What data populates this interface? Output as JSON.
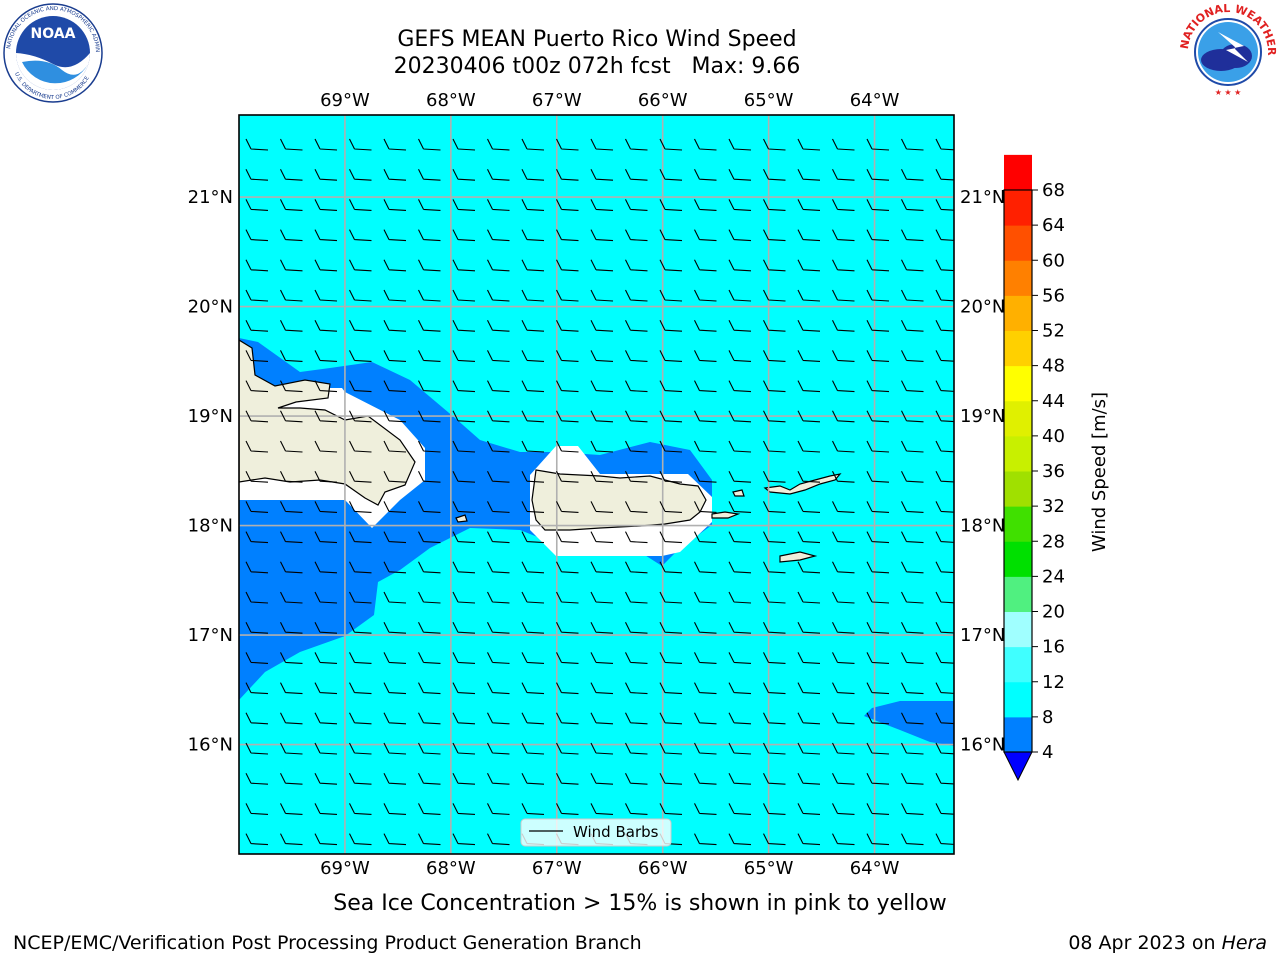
{
  "title": {
    "line1": "GEFS MEAN Puerto Rico Wind Speed",
    "line2": "20230406 t00z 072h fcst   Max: 9.66"
  },
  "logos": {
    "left": "NOAA",
    "right": "NATIONAL WEATHER SERVICE"
  },
  "map": {
    "lon_labels": [
      "69°W",
      "68°W",
      "67°W",
      "66°W",
      "65°W",
      "64°W"
    ],
    "lat_labels": [
      "21°N",
      "20°N",
      "19°N",
      "18°N",
      "17°N",
      "16°N"
    ],
    "lon_values": [
      -69,
      -68,
      -67,
      -66,
      -65,
      -64
    ],
    "lat_values": [
      21,
      20,
      19,
      18,
      17,
      16
    ],
    "extent": {
      "lon": [
        -70,
        -63.25
      ],
      "lat": [
        15,
        21.75
      ]
    },
    "ocean_color": "#00ffff",
    "land_color": "#efefdc",
    "legend_label": "Wind Barbs"
  },
  "colorbar": {
    "label": "Wind Speed [m/s]",
    "ticks": [
      "4",
      "8",
      "12",
      "16",
      "20",
      "24",
      "28",
      "32",
      "36",
      "40",
      "44",
      "48",
      "52",
      "56",
      "60",
      "64",
      "68"
    ],
    "colors": [
      "#0080ff",
      "#00ffff",
      "#40ffff",
      "#a0ffff",
      "#50f080",
      "#00e000",
      "#40e000",
      "#a0e000",
      "#c8f000",
      "#e0f000",
      "#ffff00",
      "#ffd000",
      "#ffb000",
      "#ff8000",
      "#ff5000",
      "#ff2000",
      "#ff0000"
    ],
    "under_color": "#0000ff"
  },
  "note": "Sea Ice Concentration > 15% is shown in pink to yellow",
  "footer": {
    "left": "NCEP/EMC/Verification Post Processing Product Generation Branch",
    "right_date": "08 Apr 2023 on ",
    "right_machine": "Hera"
  }
}
